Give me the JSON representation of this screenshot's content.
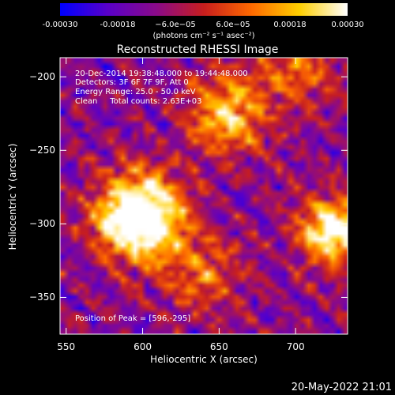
{
  "colorbar": {
    "ticks": [
      "-0.00030",
      "-0.00018",
      "−6.0e−05",
      "6.0e−05",
      "0.00018",
      "0.00030"
    ],
    "tick_values": [
      -0.0003,
      -0.00018,
      -6e-05,
      6e-05,
      0.00018,
      0.0003
    ],
    "range": [
      -0.0003,
      0.0003
    ],
    "units": "(photons cm⁻² s⁻¹ asec⁻²)",
    "colors": [
      "#0000ff",
      "#5a00c8",
      "#8a0a8a",
      "#c81e1e",
      "#ff6a00",
      "#ffd000",
      "#ffffff"
    ]
  },
  "chart_data": {
    "type": "heatmap",
    "title": "Reconstructed RHESSI Image",
    "xlabel": "Heliocentric X (arcsec)",
    "ylabel": "Heliocentric Y (arcsec)",
    "xlim": [
      546,
      734
    ],
    "ylim": [
      -375,
      -187
    ],
    "xticks": [
      550,
      600,
      650,
      700
    ],
    "yticks": [
      -200,
      -250,
      -300,
      -350
    ],
    "grid": false,
    "sources": [
      {
        "x": 598,
        "y": -295,
        "amp": 1.0,
        "sigma": 20
      },
      {
        "x": 655,
        "y": -225,
        "amp": 0.55,
        "sigma": 18
      },
      {
        "x": 700,
        "y": -195,
        "amp": 0.35,
        "sigma": 18
      },
      {
        "x": 725,
        "y": -305,
        "amp": 0.75,
        "sigma": 16
      },
      {
        "x": 640,
        "y": -335,
        "amp": 0.3,
        "sigma": 18
      }
    ],
    "annotations": {
      "time": "20-Dec-2014 19:38:48.000 to 19:44:48.000",
      "detectors": "Detectors: 3F 6F 7F 9F, Att 0",
      "energy": "Energy Range: 25.0 - 50.0 keV",
      "clean": "Clean     Total counts: 2.63E+03",
      "peak": "Position of Peak = [596,-295]"
    }
  },
  "footer": {
    "timestamp": "20-May-2022 21:01"
  }
}
